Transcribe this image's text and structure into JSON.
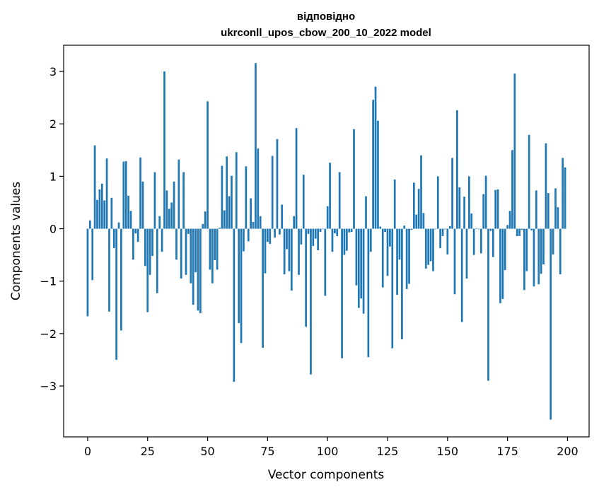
{
  "chart_data": {
    "type": "bar",
    "title_line1": "відповідно",
    "title_line2": "ukrconll_upos_cbow_200_10_2022 model",
    "xlabel": "Vector components",
    "ylabel": "Components values",
    "xlim": [
      -10,
      209
    ],
    "ylim": [
      -3.97,
      3.5
    ],
    "xticks": [
      0,
      25,
      50,
      75,
      100,
      125,
      150,
      175,
      200
    ],
    "yticks": [
      -3,
      -2,
      -1,
      0,
      1,
      2,
      3
    ],
    "ytick_labels": [
      "−3",
      "−2",
      "−1",
      "0",
      "1",
      "2",
      "3"
    ],
    "bar_color": "#1f77b4",
    "values": [
      -1.67,
      0.16,
      -0.98,
      1.59,
      0.55,
      0.75,
      0.86,
      0.54,
      1.34,
      -1.58,
      0.59,
      -0.37,
      -2.5,
      0.12,
      -1.94,
      1.28,
      1.29,
      0.63,
      0.34,
      -0.59,
      -0.09,
      -0.25,
      1.36,
      0.9,
      -0.71,
      -1.59,
      -0.88,
      -0.52,
      1.08,
      -1.23,
      0.24,
      -0.44,
      3.0,
      0.73,
      0.38,
      0.5,
      0.9,
      -0.59,
      1.32,
      -0.95,
      1.08,
      -0.88,
      -0.1,
      -1.04,
      -1.45,
      -0.83,
      -1.56,
      -1.61,
      0.09,
      0.33,
      2.43,
      -0.78,
      -1.04,
      -0.6,
      -0.78,
      0.02,
      1.2,
      0.35,
      1.38,
      0.62,
      1.01,
      -2.92,
      1.46,
      -1.8,
      -2.18,
      -0.43,
      1.19,
      -0.24,
      0.58,
      0.13,
      3.16,
      1.53,
      0.24,
      -2.27,
      -0.85,
      -0.25,
      -0.29,
      1.39,
      -0.17,
      1.71,
      -0.11,
      0.46,
      -0.87,
      -0.39,
      -0.81,
      -1.18,
      0.24,
      1.92,
      -0.88,
      -0.3,
      1.03,
      -1.87,
      -0.1,
      -2.78,
      -0.33,
      -0.19,
      -0.41,
      -0.06,
      -0.01,
      -1.28,
      0.43,
      1.26,
      -0.44,
      -0.09,
      -0.14,
      1.08,
      -2.47,
      -0.5,
      -0.42,
      -0.07,
      -0.06,
      1.9,
      -1.08,
      -1.51,
      -1.33,
      -1.62,
      0.62,
      -2.45,
      -0.44,
      2.46,
      2.71,
      2.06,
      0.04,
      -1.12,
      -0.06,
      -0.9,
      -0.34,
      -2.28,
      0.94,
      -1.26,
      -0.59,
      -2.11,
      0.06,
      -1.15,
      -1.05,
      -0.02,
      0.88,
      0.27,
      0.76,
      1.4,
      0.3,
      -0.76,
      -0.69,
      -0.62,
      -0.81,
      -0.01,
      1.0,
      -0.37,
      -0.14,
      -0.01,
      -0.49,
      0.05,
      1.35,
      -1.25,
      2.26,
      0.79,
      -1.78,
      0.61,
      -0.95,
      1.0,
      0.29,
      -0.5,
      0.01,
      -0.01,
      -0.47,
      0.66,
      1.01,
      -2.9,
      -0.04,
      -0.54,
      0.74,
      0.75,
      -1.42,
      -1.34,
      -0.79,
      0.07,
      0.34,
      1.5,
      2.96,
      -0.14,
      -0.14,
      -0.02,
      -1.17,
      -0.81,
      1.79,
      -0.03,
      -1.1,
      0.73,
      -1.06,
      -0.86,
      -0.68,
      1.63,
      0.68,
      -3.64,
      -0.49,
      0.77,
      0.41,
      -0.87,
      1.35,
      1.17
    ]
  }
}
